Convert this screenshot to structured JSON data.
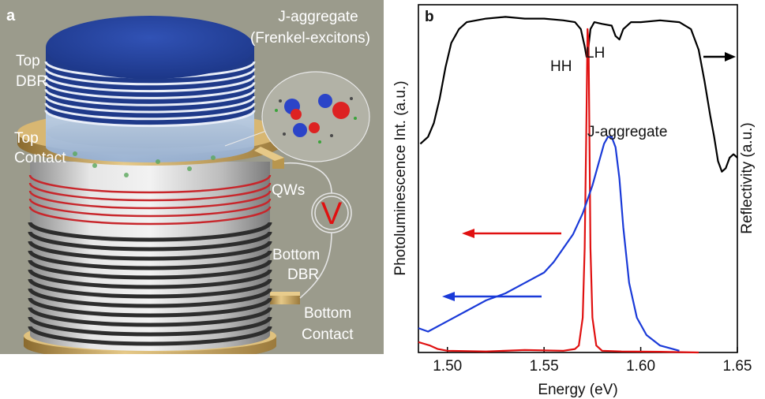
{
  "panel_a": {
    "letter": "a",
    "labels": {
      "j_aggregate_line1": "J-aggregate",
      "j_aggregate_line2": "(Frenkel-excitons)",
      "top_dbr_line1": "Top",
      "top_dbr_line2": "DBR",
      "top_contact_line1": "Top",
      "top_contact_line2": "Contact",
      "qws": "QWs",
      "voltage": "V",
      "bottom_dbr_line1": "Bottom",
      "bottom_dbr_line2": "DBR",
      "bottom_contact_line1": "Bottom",
      "bottom_contact_line2": "Contact"
    },
    "colors": {
      "background": "#9b9b8c",
      "dbr_top": "#2546a5",
      "contact": "#c9a35a",
      "qw": "#c8262b",
      "dbr_bottom": "#303030"
    }
  },
  "chart_data": {
    "type": "line",
    "panel_letter": "b",
    "xlabel": "Energy (eV)",
    "ylabel_left": "Photoluminescence Int. (a.u.)",
    "ylabel_right": "Reflectivity (a.u.)",
    "xlim": [
      1.485,
      1.65
    ],
    "xticks": [
      1.5,
      1.55,
      1.6,
      1.65
    ],
    "xtick_labels": [
      "1.50",
      "1.55",
      "1.60",
      "1.65"
    ],
    "ylim": [
      0,
      1
    ],
    "annotations": {
      "hh": "HH",
      "lh": "LH",
      "j_aggregate": "J-aggregate"
    },
    "series": [
      {
        "axis": "right",
        "color": "#000000",
        "x": [
          1.486,
          1.49,
          1.493,
          1.496,
          1.499,
          1.502,
          1.506,
          1.51,
          1.52,
          1.53,
          1.54,
          1.55,
          1.56,
          1.566,
          1.569,
          1.571,
          1.572,
          1.573,
          1.574,
          1.576,
          1.58,
          1.585,
          1.587,
          1.589,
          1.591,
          1.595,
          1.6,
          1.61,
          1.62,
          1.626,
          1.63,
          1.633,
          1.636,
          1.638,
          1.64,
          1.642,
          1.644,
          1.646,
          1.648,
          1.65
        ],
        "y": [
          0.6,
          0.62,
          0.66,
          0.73,
          0.82,
          0.89,
          0.93,
          0.95,
          0.96,
          0.965,
          0.96,
          0.96,
          0.955,
          0.95,
          0.93,
          0.88,
          0.85,
          0.88,
          0.93,
          0.95,
          0.945,
          0.94,
          0.91,
          0.9,
          0.93,
          0.95,
          0.95,
          0.955,
          0.95,
          0.93,
          0.87,
          0.78,
          0.68,
          0.62,
          0.55,
          0.52,
          0.53,
          0.56,
          0.57,
          0.56
        ]
      },
      {
        "axis": "left",
        "color": "#e01010",
        "x": [
          1.485,
          1.488,
          1.491,
          1.495,
          1.5,
          1.52,
          1.54,
          1.56,
          1.566,
          1.568,
          1.57,
          1.571,
          1.572,
          1.5725,
          1.573,
          1.5735,
          1.574,
          1.575,
          1.577,
          1.58,
          1.59,
          1.61,
          1.63
        ],
        "y": [
          0.03,
          0.025,
          0.02,
          0.01,
          0.005,
          0.003,
          0.007,
          0.005,
          0.01,
          0.02,
          0.1,
          0.3,
          0.7,
          0.93,
          0.89,
          0.6,
          0.3,
          0.1,
          0.02,
          0.005,
          0.003,
          0.002,
          0.0
        ]
      },
      {
        "axis": "left",
        "color": "#1a3ad8",
        "x": [
          1.485,
          1.49,
          1.5,
          1.51,
          1.52,
          1.53,
          1.54,
          1.55,
          1.555,
          1.56,
          1.565,
          1.57,
          1.575,
          1.578,
          1.581,
          1.583,
          1.585,
          1.587,
          1.589,
          1.591,
          1.594,
          1.598,
          1.603,
          1.61,
          1.62
        ],
        "y": [
          0.07,
          0.06,
          0.09,
          0.12,
          0.15,
          0.17,
          0.2,
          0.23,
          0.26,
          0.3,
          0.34,
          0.4,
          0.48,
          0.54,
          0.6,
          0.62,
          0.62,
          0.59,
          0.5,
          0.36,
          0.2,
          0.1,
          0.05,
          0.02,
          0.005
        ]
      }
    ]
  }
}
